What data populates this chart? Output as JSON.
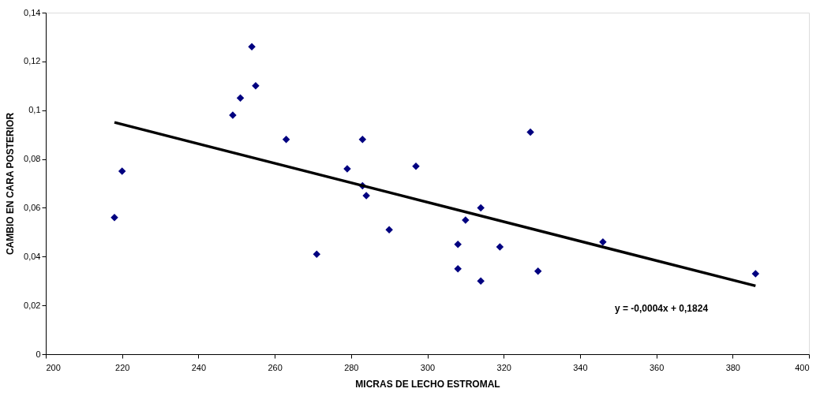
{
  "chart_data": {
    "type": "scatter",
    "xlabel": "MICRAS DE LECHO ESTROMAL",
    "ylabel": "CAMBIO EN CARA POSTERIOR",
    "xlim": [
      200,
      400
    ],
    "xticks": [
      200,
      220,
      240,
      260,
      280,
      300,
      320,
      340,
      360,
      380,
      400
    ],
    "ylim": [
      0,
      0.14
    ],
    "yticks": [
      0,
      {
        "value": 0.02,
        "label": "0,02"
      },
      {
        "value": 0.04,
        "label": "0,04"
      },
      {
        "value": 0.06,
        "label": "0,06"
      },
      {
        "value": 0.08,
        "label": "0,08"
      },
      {
        "value": 0.1,
        "label": "0,1"
      },
      {
        "value": 0.12,
        "label": "0,12"
      },
      {
        "value": 0.14,
        "label": "0,14"
      }
    ],
    "grid": false,
    "marker": "diamond",
    "annotations": [
      "y = -0,0004x + 0,1824"
    ],
    "series": [
      {
        "color": "#000080",
        "x": [
          218,
          220,
          249,
          251,
          254,
          263,
          271,
          279,
          283,
          284,
          290,
          297,
          308,
          310,
          314,
          314,
          329,
          346,
          386
        ],
        "values": [
          0.056,
          0.075,
          0.098,
          0.105,
          0.126,
          0.088,
          0.041,
          0.076,
          0.069,
          0.065,
          0.051,
          0.077,
          0.045,
          0.055,
          0.06,
          0.03,
          0.034,
          0.046,
          0.033
        ]
      },
      {
        "color": "#000080",
        "x": [
          255,
          283,
          327,
          308,
          319
        ],
        "values": [
          0.11,
          0.088,
          0.091,
          0.035,
          0.044
        ]
      },
      {
        "type": "line",
        "marker": "none",
        "line_style": "solid",
        "color": "#000000",
        "x": [
          218,
          386
        ],
        "values": [
          0.095,
          0.028
        ]
      }
    ]
  }
}
